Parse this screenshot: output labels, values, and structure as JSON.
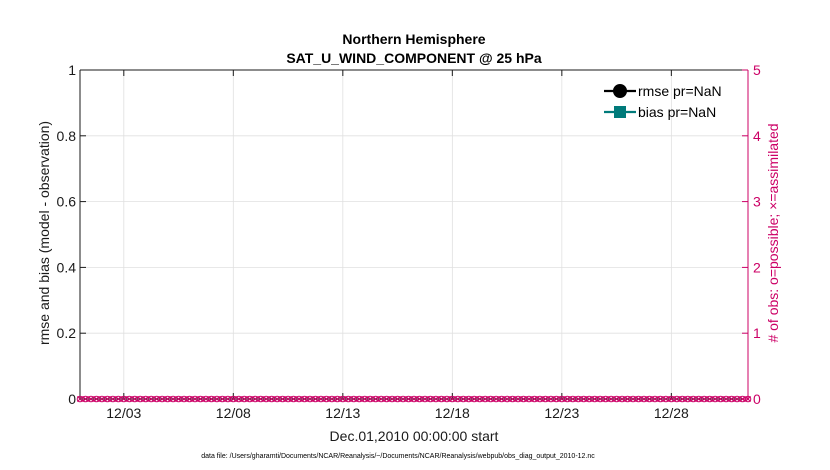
{
  "chart_data": {
    "type": "line",
    "title": "Northern Hemisphere",
    "subtitle": "SAT_U_WIND_COMPONENT @ 25 hPa",
    "xlabel": "Dec.01,2010 00:00:00 start",
    "ylabel": "rmse and bias (model - observation)",
    "ylabel_right": "# of obs: o=possible; ×=assimilated",
    "xlim": [
      1,
      31.5
    ],
    "ylim": [
      0,
      1
    ],
    "ylim_right": [
      0,
      5
    ],
    "x_ticks": [
      3,
      8,
      13,
      18,
      23,
      28
    ],
    "x_tick_labels": [
      "12/03",
      "12/08",
      "12/13",
      "12/18",
      "12/23",
      "12/28"
    ],
    "y_ticks": [
      0,
      0.2,
      0.4,
      0.6,
      0.8,
      1
    ],
    "y_tick_labels": [
      "0",
      "0.2",
      "0.4",
      "0.6",
      "0.8",
      "1"
    ],
    "y_ticks_right": [
      0,
      1,
      2,
      3,
      4,
      5
    ],
    "y_tick_labels_right": [
      "0",
      "1",
      "2",
      "3",
      "4",
      "5"
    ],
    "grid": true,
    "legend_position": "top-right",
    "legend": [
      {
        "label": "rmse pr=NaN",
        "color": "#000000",
        "marker": "circle"
      },
      {
        "label": "bias pr=NaN",
        "color": "#007a7a",
        "marker": "square"
      }
    ],
    "series": [
      {
        "name": "obs possible",
        "color": "#cc0066",
        "marker": "circle",
        "axis": "right",
        "x_start": 1,
        "x_end": 31.5,
        "x_step": 0.25,
        "value": 0
      },
      {
        "name": "obs assimilated",
        "color": "#cc0066",
        "marker": "cross",
        "axis": "right",
        "x_start": 1,
        "x_end": 31.5,
        "x_step": 0.25,
        "value": 0
      }
    ],
    "footnote": "data file: /Users/gharamti/Documents/NCAR/Reanalysis/~/Documents/NCAR/Reanalysis/webpub/obs_diag_output_2010-12.nc"
  },
  "colors": {
    "axis_left": "#1a1a1a",
    "axis_right": "#cc0066",
    "grid": "#e0e0e0",
    "obs": "#cc0066"
  }
}
